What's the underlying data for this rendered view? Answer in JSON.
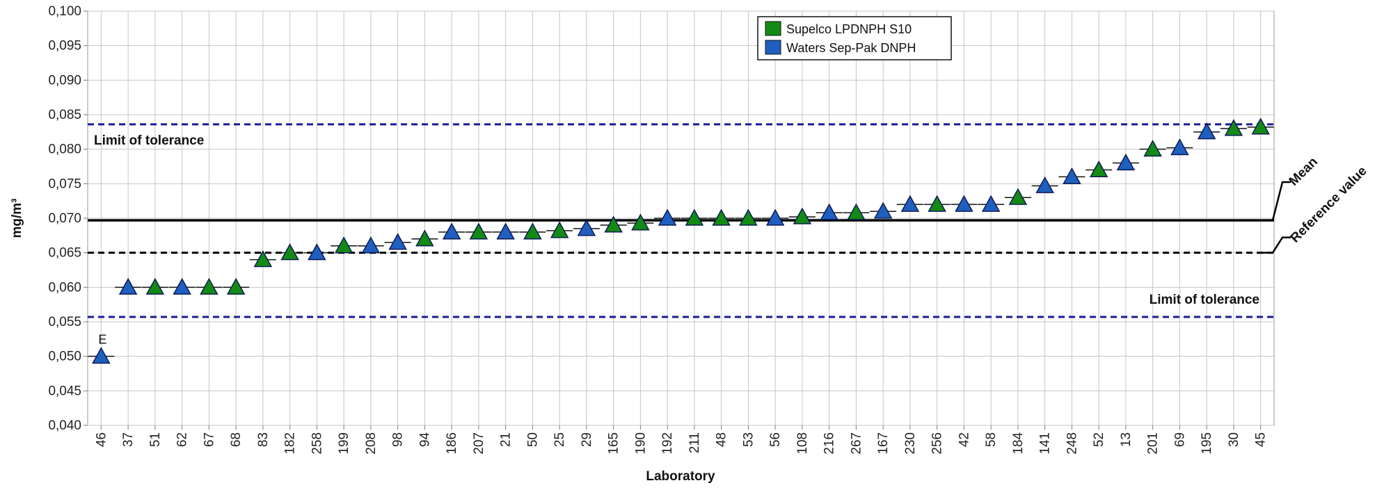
{
  "chart_data": {
    "type": "scatter",
    "title": "",
    "xlabel": "Laboratory",
    "ylabel": "mg/m³",
    "ylim": [
      0.04,
      0.1
    ],
    "y_ticks": [
      "0,040",
      "0,045",
      "0,050",
      "0,055",
      "0,060",
      "0,065",
      "0,070",
      "0,075",
      "0,080",
      "0,085",
      "0,090",
      "0,095",
      "0,100"
    ],
    "grid": true,
    "legend_position": "top-center",
    "colors": {
      "supelco": "#138a13",
      "waters": "#1f5fbf",
      "tolerance_line": "#1a1a9a",
      "mean_line": "#000000",
      "reference_line": "#000000"
    },
    "categories": [
      "46",
      "37",
      "51",
      "62",
      "67",
      "68",
      "83",
      "182",
      "258",
      "199",
      "208",
      "98",
      "94",
      "186",
      "207",
      "21",
      "50",
      "25",
      "29",
      "165",
      "190",
      "192",
      "211",
      "48",
      "53",
      "56",
      "108",
      "216",
      "267",
      "167",
      "230",
      "256",
      "42",
      "58",
      "184",
      "141",
      "248",
      "52",
      "13",
      "201",
      "69",
      "195",
      "30",
      "45"
    ],
    "values": [
      0.05,
      0.06,
      0.06,
      0.06,
      0.06,
      0.06,
      0.064,
      0.065,
      0.065,
      0.066,
      0.066,
      0.0665,
      0.067,
      0.068,
      0.068,
      0.068,
      0.068,
      0.0682,
      0.0685,
      0.069,
      0.0693,
      0.07,
      0.07,
      0.07,
      0.07,
      0.07,
      0.0702,
      0.0708,
      0.0708,
      0.071,
      0.072,
      0.072,
      0.072,
      0.072,
      0.073,
      0.0747,
      0.076,
      0.077,
      0.078,
      0.08,
      0.0802,
      0.0825,
      0.083,
      0.0832
    ],
    "cartridge": [
      "W",
      "W",
      "G",
      "W",
      "G",
      "G",
      "G",
      "G",
      "W",
      "G",
      "W",
      "W",
      "G",
      "W",
      "G",
      "W",
      "G",
      "G",
      "W",
      "G",
      "G",
      "W",
      "G",
      "G",
      "G",
      "W",
      "G",
      "W",
      "G",
      "W",
      "W",
      "G",
      "W",
      "W",
      "G",
      "W",
      "W",
      "G",
      "W",
      "G",
      "W",
      "W",
      "G",
      "G"
    ],
    "series": [
      {
        "key": "G",
        "name": "Supelco LPDNPH S10"
      },
      {
        "key": "W",
        "name": "Waters Sep-Pak DNPH"
      }
    ],
    "reference_lines": {
      "mean": {
        "value": 0.0697,
        "label": "Mean"
      },
      "reference_value": {
        "value": 0.065,
        "label": "Reference value"
      },
      "upper_tolerance": {
        "value": 0.0836,
        "label": "Limit of tolerance"
      },
      "lower_tolerance": {
        "value": 0.0557,
        "label": "Limit of tolerance"
      }
    },
    "annotations": [
      {
        "category": "46",
        "text": "E"
      }
    ]
  }
}
